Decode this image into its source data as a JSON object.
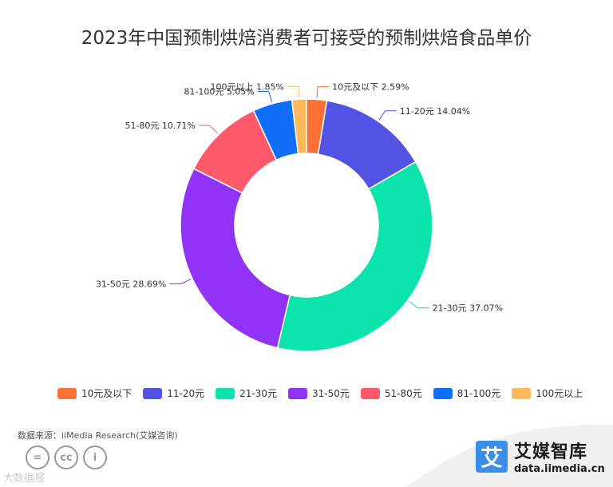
{
  "chart_data": {
    "type": "pie",
    "title": "2023年中国预制烘焙消费者可接受的预制烘焙食品单价",
    "series": [
      {
        "name": "10元及以下",
        "value": 2.59,
        "label": "10元及以下 2.59%",
        "color": "#ff7034"
      },
      {
        "name": "11-20元",
        "value": 14.04,
        "label": "11-20元 14.04%",
        "color": "#5252e3"
      },
      {
        "name": "21-30元",
        "value": 37.07,
        "label": "21-30元 37.07%",
        "color": "#0be5ad"
      },
      {
        "name": "31-50元",
        "value": 28.69,
        "label": "31-50元 28.69%",
        "color": "#9133f7"
      },
      {
        "name": "51-80元",
        "value": 10.71,
        "label": "51-80元 10.71%",
        "color": "#ff5a6b"
      },
      {
        "name": "81-100元",
        "value": 5.05,
        "label": "81-100元 5.05%",
        "color": "#0f6ff7"
      },
      {
        "name": "100元以上",
        "value": 1.85,
        "label": "100元以上 1.85%",
        "color": "#ffb95a"
      }
    ],
    "legend_position": "bottom",
    "donut": true
  },
  "source": "数据来源：iiMedia Research(艾媒咨询)",
  "brand": {
    "logo_char": "艾",
    "name": "艾媒智库",
    "url": "data.iimedia.cn"
  },
  "watermark": "大数据报",
  "cc_icons": [
    "=",
    "cc",
    "i"
  ]
}
